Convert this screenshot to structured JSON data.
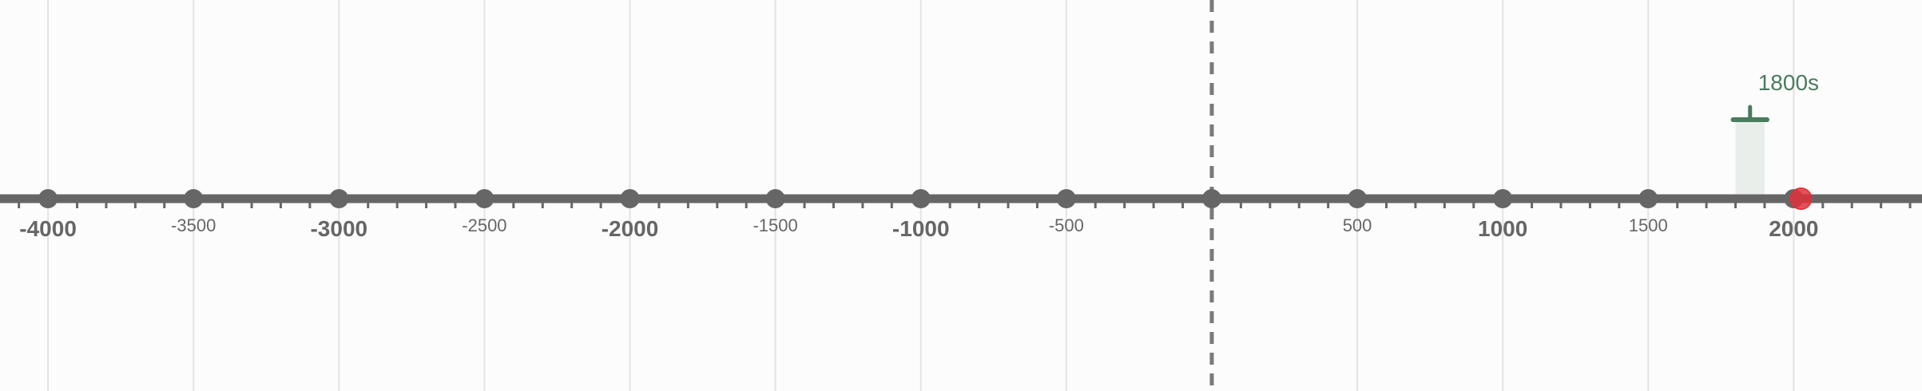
{
  "timeline": {
    "min_year": -4165,
    "max_year": 2441,
    "major_interval": 500,
    "minor_interval": 100,
    "labels": [
      {
        "year": -4000,
        "text": "-4000",
        "style": "major"
      },
      {
        "year": -3500,
        "text": "-3500",
        "style": "minor"
      },
      {
        "year": -3000,
        "text": "-3000",
        "style": "major"
      },
      {
        "year": -2500,
        "text": "-2500",
        "style": "minor"
      },
      {
        "year": -2000,
        "text": "-2000",
        "style": "major"
      },
      {
        "year": -1500,
        "text": "-1500",
        "style": "minor"
      },
      {
        "year": -1000,
        "text": "-1000",
        "style": "major"
      },
      {
        "year": -500,
        "text": "-500",
        "style": "minor"
      },
      {
        "year": 500,
        "text": "500",
        "style": "minor"
      },
      {
        "year": 1000,
        "text": "1000",
        "style": "major"
      },
      {
        "year": 1500,
        "text": "1500",
        "style": "minor"
      },
      {
        "year": 2000,
        "text": "2000",
        "style": "major"
      }
    ],
    "zero_marker_year": 0,
    "current_year": 2025,
    "highlight": {
      "label": "1800s",
      "start_year": 1800,
      "end_year": 1900
    },
    "colors": {
      "axis": "#666666",
      "gridline": "#e3e3e3",
      "dashed_line": "#7a7a7a",
      "highlight_accent": "#4a7c5e",
      "highlight_fill": "#e9eeeb",
      "current_marker": "#e0303a",
      "background": "#fcfcfc"
    }
  }
}
